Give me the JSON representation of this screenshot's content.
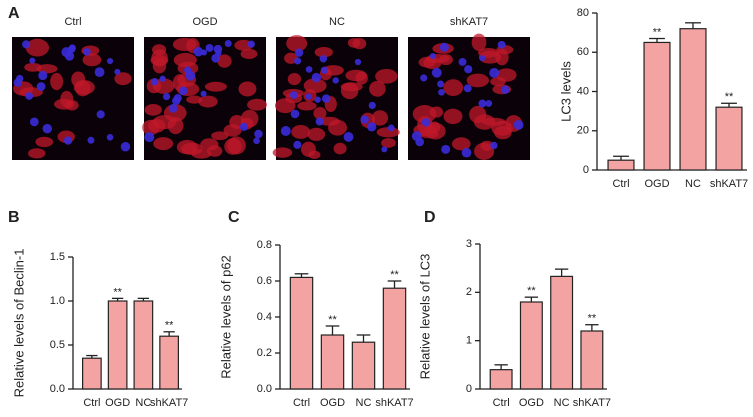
{
  "panel_labels": [
    "A",
    "B",
    "C",
    "D"
  ],
  "image_labels": [
    "Ctrl",
    "OGD",
    "NC",
    "shKAT7"
  ],
  "chart_data": [
    {
      "type": "bar",
      "ylabel": "LC3 levels",
      "categories": [
        "Ctrl",
        "OGD",
        "NC",
        "shKAT7"
      ],
      "values": [
        5,
        65,
        72,
        32
      ],
      "errors": [
        2,
        2,
        3,
        2
      ],
      "annotations": [
        null,
        "**",
        null,
        "**"
      ],
      "color": "#f4a3a3",
      "ylim": [
        0,
        80
      ],
      "yticks": [
        0,
        20,
        40,
        60,
        80
      ]
    },
    {
      "type": "bar",
      "ylabel": "Relative levels of Beclin-1",
      "categories": [
        "Ctrl",
        "OGD",
        "NC",
        "shKAT7"
      ],
      "values": [
        0.35,
        1.0,
        1.0,
        0.6
      ],
      "errors": [
        0.03,
        0.03,
        0.03,
        0.05
      ],
      "annotations": [
        null,
        "**",
        null,
        "**"
      ],
      "color": "#f4a3a3",
      "ylim": [
        0,
        1.5
      ],
      "yticks": [
        {
          "value": 0,
          "label": "0.0"
        },
        0.5,
        {
          "value": 1,
          "label": "1.0"
        },
        1.5
      ]
    },
    {
      "type": "bar",
      "ylabel": "Relative levels of p62",
      "categories": [
        "Ctrl",
        "OGD",
        "NC",
        "shKAT7"
      ],
      "values": [
        0.62,
        0.3,
        0.26,
        0.56
      ],
      "errors": [
        0.02,
        0.05,
        0.04,
        0.04
      ],
      "annotations": [
        null,
        "**",
        null,
        "**"
      ],
      "color": "#f4a3a3",
      "ylim": [
        0,
        0.8
      ],
      "yticks": [
        {
          "value": 0,
          "label": "0.0"
        },
        0.2,
        0.4,
        0.6,
        0.8
      ]
    },
    {
      "type": "bar",
      "ylabel": "Relative levels of LC3",
      "categories": [
        "Ctrl",
        "OGD",
        "NC",
        "shKAT7"
      ],
      "values": [
        0.4,
        1.8,
        2.33,
        1.2
      ],
      "errors": [
        0.1,
        0.1,
        0.15,
        0.13
      ],
      "annotations": [
        null,
        "**",
        null,
        "**"
      ],
      "color": "#f4a3a3",
      "ylim": [
        0,
        3
      ],
      "yticks": [
        0,
        1,
        2,
        3
      ]
    }
  ]
}
